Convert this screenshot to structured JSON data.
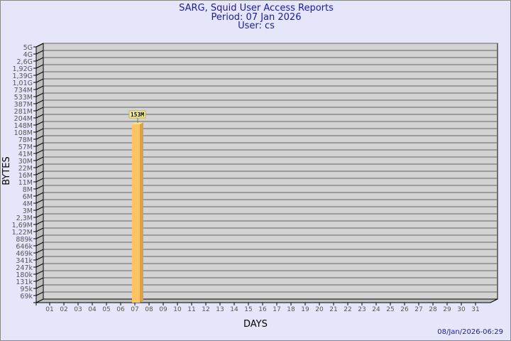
{
  "chart_data": {
    "type": "bar",
    "title": "SARG, Squid User Access Reports",
    "subtitle": "Period: 07 Jan 2026",
    "user": "User: cs",
    "xlabel": "DAYS",
    "ylabel": "BYTES",
    "categories": [
      "01",
      "02",
      "03",
      "04",
      "05",
      "06",
      "07",
      "08",
      "09",
      "10",
      "11",
      "12",
      "13",
      "14",
      "15",
      "16",
      "17",
      "18",
      "19",
      "20",
      "21",
      "22",
      "23",
      "24",
      "25",
      "26",
      "27",
      "28",
      "29",
      "30",
      "31"
    ],
    "y_scale": "log",
    "y_ticks": [
      "5G",
      "4G",
      "2,6G",
      "1,92G",
      "1,39G",
      "1,01G",
      "734M",
      "533M",
      "387M",
      "281M",
      "204M",
      "148M",
      "108M",
      "78M",
      "57M",
      "41M",
      "30M",
      "22M",
      "16M",
      "11M",
      "8M",
      "6M",
      "4M",
      "3M",
      "2,3M",
      "1,69M",
      "1,22M",
      "889k",
      "646k",
      "469k",
      "341k",
      "247k",
      "180k",
      "131k",
      "95k",
      "69k"
    ],
    "bars": [
      {
        "category": "07",
        "value_label": "153M",
        "value": 153000000
      }
    ],
    "grid": true,
    "colors": {
      "bar": "#fcc464",
      "bar_side": "#d9a048",
      "wall": "#d3d3d3",
      "text": "#1a1aa0"
    }
  },
  "footer": {
    "timestamp": "08/Jan/2026-06:29"
  }
}
